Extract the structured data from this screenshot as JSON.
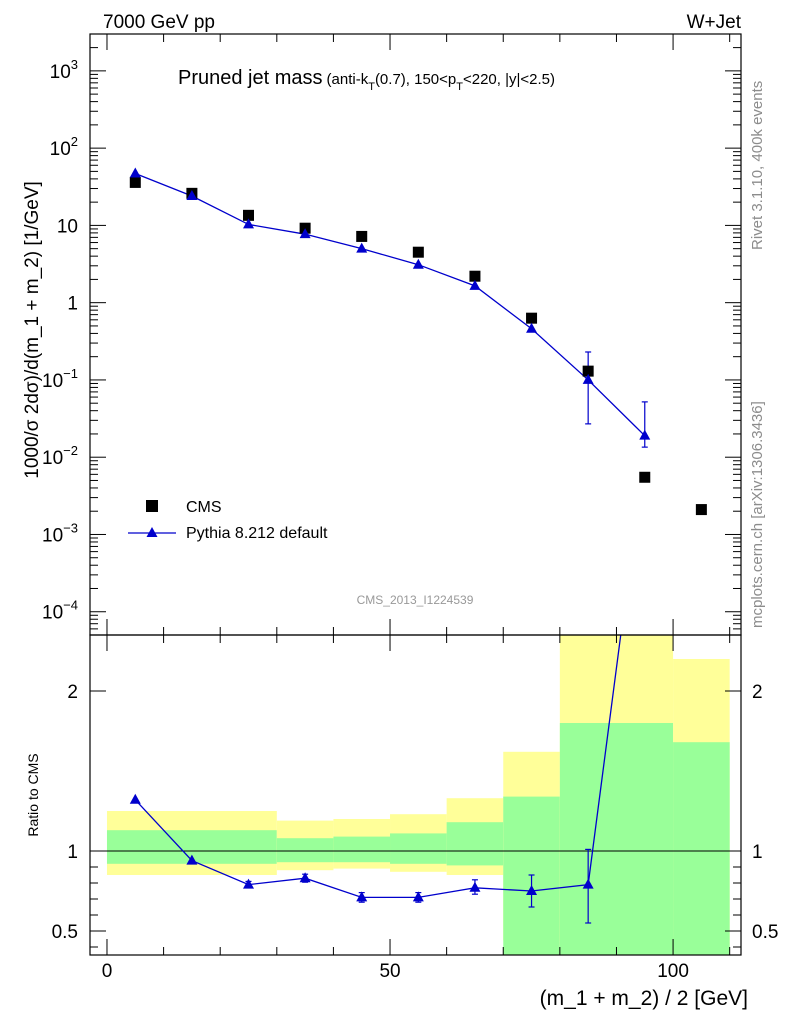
{
  "header": {
    "left": "7000 GeV pp",
    "right": "W+Jet"
  },
  "side_labels": {
    "rivet": "Rivet 3.1.10,  400k events",
    "url": "mcplots.cern.ch [arXiv:1306.3436]"
  },
  "watermark": "CMS_2013_I1224539",
  "colors": {
    "data": "#000000",
    "mc": "#0000cc",
    "band_inner": "#99ff99",
    "band_outer": "#ffff99"
  },
  "chart_data": [
    {
      "type": "scatter",
      "panel": "main",
      "title": "Pruned jet mass",
      "title_selection": {
        "prefix": "(anti-k",
        "sub1": "T",
        "mid1": "(0.7), 150<p",
        "sub2": "T",
        "suffix": "<220, |y|<2.5)"
      },
      "ylabel": "1000/σ 2dσ)/d(m_1 + m_2) [1/GeV]",
      "yscale": "log",
      "ylim": [
        5e-05,
        3000
      ],
      "xlim": [
        -3,
        112
      ],
      "ytick_labels": [
        {
          "base": "10",
          "exp": "3",
          "value": 1000
        },
        {
          "base": "10",
          "exp": "2",
          "value": 100
        },
        {
          "base": "10",
          "exp": "",
          "value": 10
        },
        {
          "base": "1",
          "exp": "",
          "value": 1
        },
        {
          "base": "10",
          "exp": "−1",
          "value": 0.1
        },
        {
          "base": "10",
          "exp": "−2",
          "value": 0.01
        },
        {
          "base": "10",
          "exp": "−3",
          "value": 0.001
        },
        {
          "base": "10",
          "exp": "−4",
          "value": 0.0001
        }
      ],
      "legend": {
        "position": "bottom-left",
        "entries": [
          "CMS",
          "Pythia 8.212 default"
        ]
      },
      "series": [
        {
          "name": "CMS",
          "marker": "square",
          "x": [
            5,
            15,
            25,
            35,
            45,
            55,
            65,
            75,
            85,
            95,
            105
          ],
          "y": [
            36,
            26,
            13.5,
            9.2,
            7.2,
            4.5,
            2.2,
            0.63,
            0.13,
            0.0055,
            0.0021
          ]
        },
        {
          "name": "Pythia 8.212 default",
          "marker": "triangle",
          "x": [
            5,
            15,
            25,
            35,
            45,
            55,
            65,
            75,
            85,
            95
          ],
          "y": [
            47,
            24,
            10.3,
            7.7,
            5.0,
            3.1,
            1.65,
            0.46,
            0.1,
            0.019
          ],
          "yerr_low": [
            0,
            0,
            0,
            0,
            0,
            0,
            0,
            0,
            0.073,
            0.0055
          ],
          "yerr_high": [
            0,
            0,
            0,
            0,
            0,
            0,
            0,
            0,
            0.13,
            0.033
          ]
        }
      ]
    },
    {
      "type": "line",
      "panel": "ratio",
      "ylabel": "Ratio to CMS",
      "xlabel": "(m_1 + m_2) / 2 [GeV]",
      "ylim": [
        0.35,
        2.35
      ],
      "xlim": [
        -3,
        112
      ],
      "xticks": [
        0,
        50,
        100
      ],
      "xtick_labels": [
        "0",
        "50",
        "100"
      ],
      "yticks": [
        0.5,
        1,
        2
      ],
      "ytick_labels": [
        "0.5",
        "1",
        "2"
      ],
      "bands": [
        {
          "x_low": 0,
          "x_high": 30,
          "outer": [
            0.85,
            1.25
          ],
          "inner": [
            0.92,
            1.13
          ]
        },
        {
          "x_low": 30,
          "x_high": 40,
          "outer": [
            0.88,
            1.19
          ],
          "inner": [
            0.93,
            1.08
          ]
        },
        {
          "x_low": 40,
          "x_high": 50,
          "outer": [
            0.89,
            1.2
          ],
          "inner": [
            0.93,
            1.09
          ]
        },
        {
          "x_low": 50,
          "x_high": 60,
          "outer": [
            0.87,
            1.23
          ],
          "inner": [
            0.92,
            1.11
          ]
        },
        {
          "x_low": 60,
          "x_high": 70,
          "outer": [
            0.85,
            1.33
          ],
          "inner": [
            0.91,
            1.18
          ]
        },
        {
          "x_low": 70,
          "x_high": 80,
          "outer": [
            0.44,
            1.62
          ],
          "inner": [
            0.35,
            1.34
          ]
        },
        {
          "x_low": 80,
          "x_high": 100,
          "outer": [
            0.35,
            2.35
          ],
          "inner": [
            0.35,
            1.8
          ]
        },
        {
          "x_low": 100,
          "x_high": 110,
          "outer": [
            0.35,
            2.2
          ],
          "inner": [
            0.35,
            1.68
          ]
        }
      ],
      "series": [
        {
          "name": "Pythia 8.212 default",
          "x": [
            5,
            15,
            25,
            35,
            45,
            55,
            65,
            75,
            85,
            95
          ],
          "y": [
            1.32,
            0.94,
            0.79,
            0.83,
            0.71,
            0.71,
            0.77,
            0.75,
            0.79,
            3.5
          ],
          "yerr_low": [
            0,
            0,
            0.02,
            0.025,
            0.03,
            0.03,
            0.04,
            0.1,
            0.24,
            0
          ],
          "yerr_high": [
            0,
            0,
            0.02,
            0.025,
            0.03,
            0.03,
            0.05,
            0.1,
            0.22,
            0
          ]
        }
      ]
    }
  ]
}
